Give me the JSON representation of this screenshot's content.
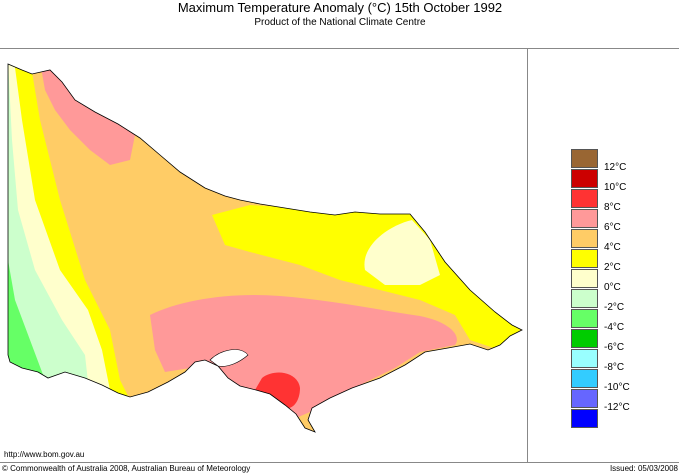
{
  "title": "Maximum Temperature Anomaly (°C)  15th October 1992",
  "subtitle": "Product of the National Climate Centre",
  "legend": {
    "colors": [
      "#996633",
      "#cc0000",
      "#ff3333",
      "#ff9999",
      "#ffcc66",
      "#ffff00",
      "#ffffcc",
      "#ccffcc",
      "#66ff66",
      "#00cc00",
      "#99ffff",
      "#33ccff",
      "#6666ff",
      "#0000ff"
    ],
    "labels": [
      "12°C",
      "10°C",
      "8°C",
      "6°C",
      "4°C",
      "2°C",
      "0°C",
      "-2°C",
      "-4°C",
      "-6°C",
      "-8°C",
      "-10°C",
      "-12°C"
    ]
  },
  "footer": {
    "url": "http://www.bom.gov.au",
    "copyright": "© Commonwealth of Australia 2008, Australian Bureau of Meteorology",
    "issued": "Issued: 05/03/2008"
  }
}
